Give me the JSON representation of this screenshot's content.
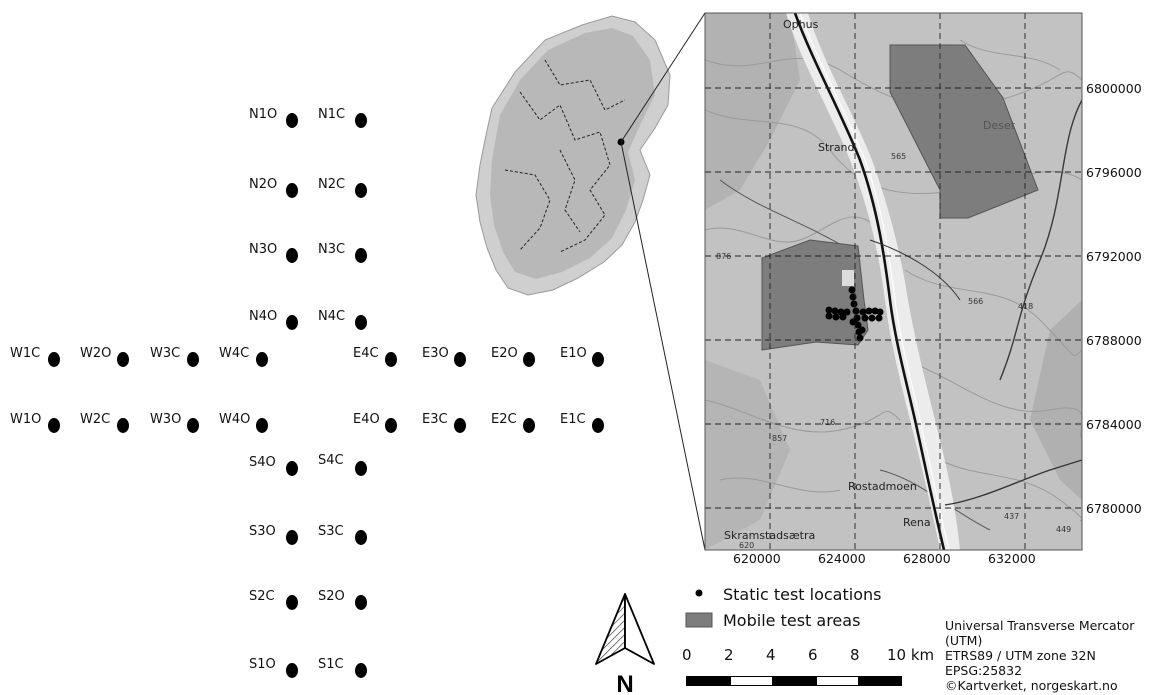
{
  "test_points": [
    {
      "label": "N1O"
    },
    {
      "label": "N1C"
    },
    {
      "label": "N2O"
    },
    {
      "label": "N2C"
    },
    {
      "label": "N3O"
    },
    {
      "label": "N3C"
    },
    {
      "label": "N4O"
    },
    {
      "label": "N4C"
    },
    {
      "label": "W1C"
    },
    {
      "label": "W2O"
    },
    {
      "label": "W3C"
    },
    {
      "label": "W4C"
    },
    {
      "label": "E4C"
    },
    {
      "label": "E3O"
    },
    {
      "label": "E2O"
    },
    {
      "label": "E1O"
    },
    {
      "label": "W1O"
    },
    {
      "label": "W2C"
    },
    {
      "label": "W3O"
    },
    {
      "label": "W4O"
    },
    {
      "label": "E4O"
    },
    {
      "label": "E3C"
    },
    {
      "label": "E2C"
    },
    {
      "label": "E1C"
    },
    {
      "label": "S4O"
    },
    {
      "label": "S4C"
    },
    {
      "label": "S3O"
    },
    {
      "label": "S3C"
    },
    {
      "label": "S2C"
    },
    {
      "label": "S2O"
    },
    {
      "label": "S1O"
    },
    {
      "label": "S1C"
    }
  ],
  "map": {
    "x_ticks": [
      "620000",
      "624000",
      "628000",
      "632000"
    ],
    "y_ticks": [
      "6800000",
      "6796000",
      "6792000",
      "6788000",
      "6784000",
      "6780000"
    ],
    "place_names": {
      "ophus": "Ophus",
      "strand": "Strand",
      "deset": "Deset",
      "rostadmoen": "Rostadmoen",
      "rena": "Rena",
      "skramstadsaetra": "Skramstadsætra"
    },
    "spot_heights": {
      "h565": "565",
      "h566": "566",
      "h418": "418",
      "h876": "876",
      "h716": "716",
      "h857": "857",
      "h437": "437",
      "h449": "449",
      "h620": "620"
    },
    "colors": {
      "water": "#f0f0f0",
      "terrain": "#bdbdbd",
      "mobile_area": "#7d7d7d",
      "dark_map": "#8a8a8a"
    }
  },
  "north_arrow": {
    "label": "N"
  },
  "legend": {
    "static": "Static test locations",
    "mobile": "Mobile test areas"
  },
  "scale": {
    "labels": [
      "0",
      "2",
      "4",
      "6",
      "8",
      "10 km"
    ]
  },
  "crs": {
    "line1": "Universal Transverse Mercator",
    "line2": "(UTM)",
    "line3": "ETRS89 / UTM zone 32N",
    "line4": "EPSG:25832",
    "line5": "©Kartverket, norgeskart.no"
  }
}
